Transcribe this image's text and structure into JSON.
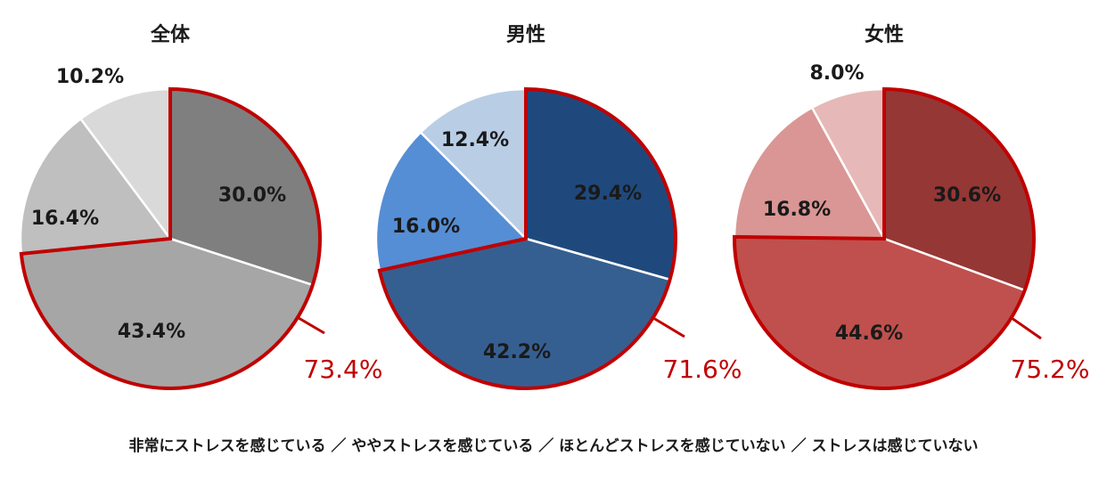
{
  "legend_text": "非常にストレスを感じている ／ ややストレスを感じている ／ ほとんどストレスを感じていない ／ ストレスは感じていない",
  "highlight_color": "#c00000",
  "chart_data": [
    {
      "type": "pie",
      "title": "全体",
      "series": [
        {
          "label": "30.0%",
          "value": 30.0,
          "color": "#7f7f7f"
        },
        {
          "label": "43.4%",
          "value": 43.4,
          "color": "#a6a6a6"
        },
        {
          "label": "16.4%",
          "value": 16.4,
          "color": "#bfbfbf"
        },
        {
          "label": "10.2%",
          "value": 10.2,
          "color": "#d9d9d9"
        }
      ],
      "highlight_total": "73.4%"
    },
    {
      "type": "pie",
      "title": "男性",
      "series": [
        {
          "label": "29.4%",
          "value": 29.4,
          "color": "#1f497d"
        },
        {
          "label": "42.2%",
          "value": 42.2,
          "color": "#365f91"
        },
        {
          "label": "16.0%",
          "value": 16.0,
          "color": "#558ed5"
        },
        {
          "label": "12.4%",
          "value": 12.4,
          "color": "#b9cde5"
        }
      ],
      "highlight_total": "71.6%"
    },
    {
      "type": "pie",
      "title": "女性",
      "series": [
        {
          "label": "30.6%",
          "value": 30.6,
          "color": "#953735"
        },
        {
          "label": "44.6%",
          "value": 44.6,
          "color": "#c0504d"
        },
        {
          "label": "16.8%",
          "value": 16.8,
          "color": "#d99694"
        },
        {
          "label": "8.0%",
          "value": 8.0,
          "color": "#e6b9b8"
        }
      ],
      "highlight_total": "75.2%"
    }
  ]
}
